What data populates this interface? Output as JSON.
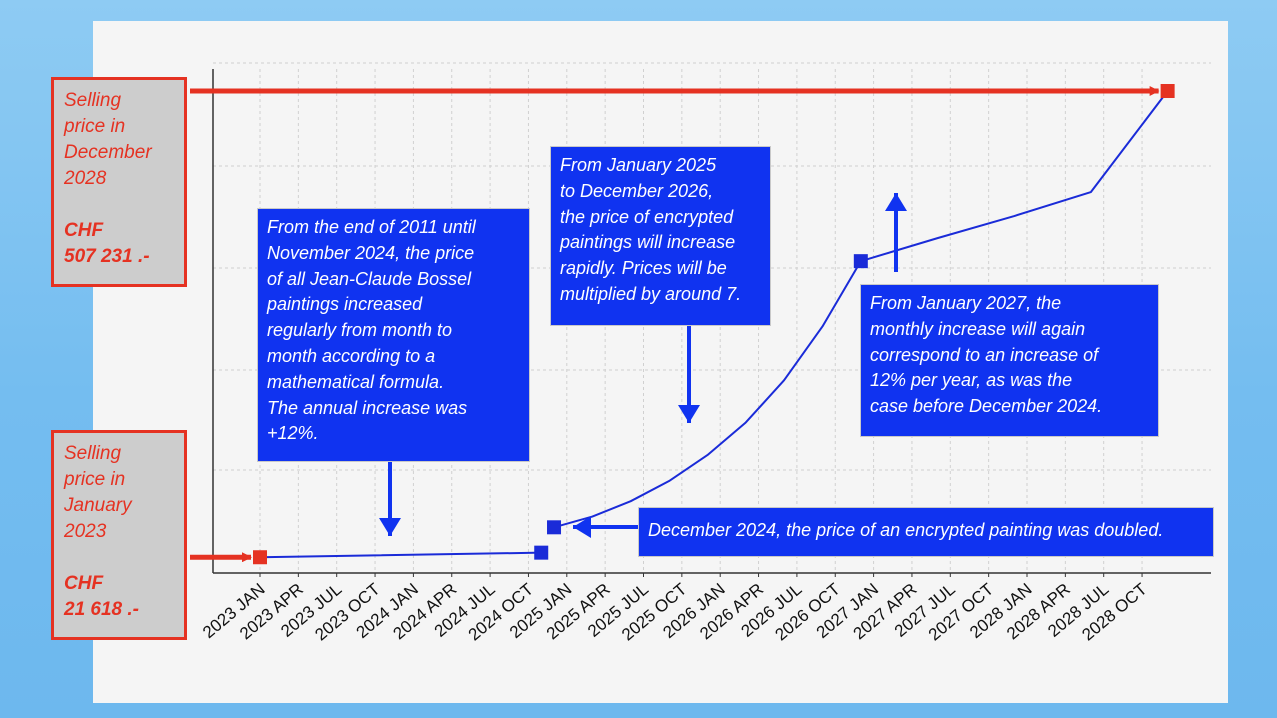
{
  "colors": {
    "background": "#7cc3f1",
    "panel": "#f5f5f5",
    "accent_red": "#e53222",
    "note_blue": "#1033f0",
    "line_blue": "#1a2bd8",
    "grid": "#d0d0d0"
  },
  "side_boxes": {
    "top": {
      "lines": [
        "Selling",
        "price in",
        "December",
        "2028"
      ],
      "price_lines": [
        "CHF",
        "507 231 .-"
      ]
    },
    "bottom": {
      "lines": [
        "Selling",
        "price in",
        "January",
        "2023"
      ],
      "price_lines": [
        "CHF",
        "21 618 .-"
      ]
    }
  },
  "notes": {
    "first_period": [
      "From the end of 2011 until",
      "November 2024, the price",
      "of all Jean-Claude Bossel",
      "paintings increased",
      "regularly from month to",
      "month according to a",
      "mathematical formula.",
      "The annual increase was",
      "+12%."
    ],
    "second_period": [
      "From January 2025",
      "to December 2026,",
      "the price of encrypted",
      "paintings will increase",
      "rapidly. Prices will be",
      "multiplied by around 7."
    ],
    "third_period": [
      "From January 2027, the",
      "monthly increase will again",
      "correspond to an increase of",
      "12% per year, as was the",
      "case before December 2024."
    ],
    "doubling": [
      "December 2024, the price of an encrypted painting was doubled."
    ]
  },
  "chart_data": {
    "type": "line",
    "categories": [
      "2023 JAN",
      "2023 APR",
      "2023 JUL",
      "2023 OCT",
      "2024 JAN",
      "2024 APR",
      "2024 JUL",
      "2024 OCT",
      "2025 JAN",
      "2025 APR",
      "2025 JUL",
      "2025 OCT",
      "2026 JAN",
      "2026 APR",
      "2026 JUL",
      "2026 OCT",
      "2027 JAN",
      "2027 APR",
      "2027 JUL",
      "2027 OCT",
      "2028 JAN",
      "2028 APR",
      "2028 JUL",
      "2028 OCT"
    ],
    "series": [
      {
        "x": [
          "2023-01",
          "2024-11",
          "2024-12",
          "2025-03",
          "2025-06",
          "2025-09",
          "2025-12",
          "2026-03",
          "2026-06",
          "2026-09",
          "2026-12",
          "2027-06",
          "2027-12",
          "2028-06",
          "2028-12"
        ],
        "values": [
          21618,
          26400,
          52800,
          64000,
          80000,
          101000,
          128000,
          162000,
          206000,
          262000,
          330000,
          354000,
          377000,
          402000,
          507231
        ]
      }
    ],
    "markers": [
      {
        "x": "2023-01",
        "value": 21618,
        "color": "#e53222"
      },
      {
        "x": "2024-11",
        "value": 26400,
        "color": "#1a2bd8"
      },
      {
        "x": "2024-12",
        "value": 52800,
        "color": "#1a2bd8"
      },
      {
        "x": "2026-12",
        "value": 330000,
        "color": "#1a2bd8"
      },
      {
        "x": "2028-12",
        "value": 507231,
        "color": "#e53222"
      }
    ],
    "ylim": [
      0,
      520000
    ],
    "grid": true,
    "title": "",
    "xlabel": "",
    "ylabel": ""
  }
}
